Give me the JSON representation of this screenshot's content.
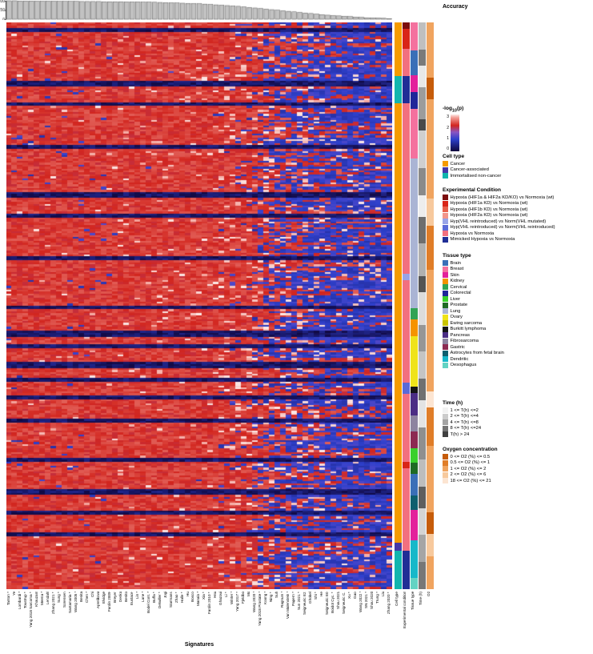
{
  "axis": {
    "x_title": "Signatures"
  },
  "strips": {
    "labels": [
      "Cell type",
      "Experimental condition",
      "Tissue type",
      "Time (h)",
      "O2"
    ]
  },
  "legends": {
    "accuracy_title": "Accuracy",
    "pvalue": {
      "title_prefix": "-log",
      "title_sub": "10",
      "title_suffix": "(p)",
      "ticks": [
        "3",
        "2",
        "1",
        "0"
      ]
    },
    "cell_type": {
      "title": "Cell type",
      "items": [
        {
          "label": "Cancer",
          "color": "#f59b00"
        },
        {
          "label": "Cancer-associated",
          "color": "#4638a8"
        },
        {
          "label": "Immortalised non-cancer",
          "color": "#12b5ae"
        }
      ]
    },
    "experimental": {
      "title": "Experimental Condition",
      "items": [
        {
          "label": "Hypoxia (HIF1a & HIF2a KD/KO) vs Normoxia (wt)",
          "color": "#7c0d0d"
        },
        {
          "label": "Hypoxia (HIF1a KD) vs Normoxia (wt)",
          "color": "#d92518"
        },
        {
          "label": "Hypoxia (HIF1b KD) vs Normoxia (wt)",
          "color": "#e8604c"
        },
        {
          "label": "Hypoxia (HIF2a KD) vs Normoxia (wt)",
          "color": "#f2958a"
        },
        {
          "label": "Hyp(VHL reintroduced) vs Norm(VHL mutated)",
          "color": "#98a4e8"
        },
        {
          "label": "Hyp(VHL reintroduced) vs Norm(VHL reintroduced)",
          "color": "#5a6ad8"
        },
        {
          "label": "Hypoxia vs Normoxia",
          "color": "#f2707f"
        },
        {
          "label": "Mimicked Hypoxia vs Normoxia",
          "color": "#202e96"
        }
      ]
    },
    "tissue": {
      "title": "Tissue type",
      "items": [
        {
          "label": "Brain",
          "color": "#3a6fb7"
        },
        {
          "label": "Breast",
          "color": "#f4719e"
        },
        {
          "label": "Skin",
          "color": "#e3219b"
        },
        {
          "label": "Kidney",
          "color": "#f59300"
        },
        {
          "label": "Cervical",
          "color": "#31a354"
        },
        {
          "label": "Colorectal",
          "color": "#1f2699"
        },
        {
          "label": "Liver",
          "color": "#39d02c"
        },
        {
          "label": "Prostate",
          "color": "#1e6b24"
        },
        {
          "label": "Lung",
          "color": "#aab4d4"
        },
        {
          "label": "Ovary",
          "color": "#efe31a"
        },
        {
          "label": "Ewing sarcoma",
          "color": "#c9c400"
        },
        {
          "label": "Burkitt lymphoma",
          "color": "#141414"
        },
        {
          "label": "Pancreas",
          "color": "#4b2d84"
        },
        {
          "label": "Fibrosarcoma",
          "color": "#8d84a0"
        },
        {
          "label": "Gastric",
          "color": "#8c2a52"
        },
        {
          "label": "Astrocytes from fetal brain",
          "color": "#0e5f6e"
        },
        {
          "label": "Dendritic",
          "color": "#17b8c9"
        },
        {
          "label": "Oesophagus",
          "color": "#63d3c3"
        }
      ]
    },
    "time": {
      "title": "Time (h)",
      "items": [
        {
          "label": "1 <= T(h) <=2",
          "color": "#f2f2f2"
        },
        {
          "label": "2 <= T(h) <=4",
          "color": "#cccccc"
        },
        {
          "label": "4 <= T(h) <=8",
          "color": "#a3a3a3"
        },
        {
          "label": "8 <= T(h) <=24",
          "color": "#737373"
        },
        {
          "label": "T(h) > 24",
          "color": "#404040"
        }
      ]
    },
    "oxygen": {
      "title": "Oxygen concentration",
      "items": [
        {
          "label": "0 <= O2 (%) <= 0.5",
          "color": "#c65c0a"
        },
        {
          "label": "0.5 <= O2 (%) <= 1",
          "color": "#e07d28"
        },
        {
          "label": "1 <= O2 (%) <= 2",
          "color": "#f0a45f"
        },
        {
          "label": "2 <= O2 (%) <= 6",
          "color": "#f7c99d"
        },
        {
          "label": "18 <= O2 (%) <= 21",
          "color": "#fce5d2"
        }
      ]
    }
  },
  "signatures": [
    "Tanton *",
    "Ye",
    "Lombardi *",
    "Toustrup *",
    "Yang 2018 Sarcoma *",
    "Khouzam",
    "Meena *",
    "Lendahl",
    "Zhang 2021 *",
    "Sung *",
    "Sorensen",
    "Santamaria *",
    "Wang 2005 *",
    "Benita",
    "Chen *",
    "Chi",
    "Aprelikova",
    "Elvidge",
    "Fardin 2009",
    "Breyer",
    "Denko",
    "Benito",
    "Eustace",
    "Lin *",
    "Lane *",
    "Bodel Cont. *",
    "Buffa *",
    "Detwiller *",
    "Jogi",
    "Starmans",
    "Zhao *",
    "Halle *",
    "Hu",
    "Bosco",
    "Manalo *",
    "Xia *",
    "Fardin 2010 *",
    "Hsu",
    "Ghazoui",
    "Li *",
    "Winter *",
    "Yang 2017 *",
    "Fjeldbo",
    "Mo",
    "Wang 2020 *",
    "Yang 2018 Prostate *",
    "Koong *",
    "Ning *",
    "Suh",
    "Ragnum *",
    "Van Malenstein *",
    "Papern *",
    "Sun 2021 *",
    "Seigneuric E2",
    "Ghobel",
    "Shi *",
    "He",
    "Seigneuric E0",
    "Boidot Cyc. *",
    "Shou 2021",
    "Seigneuric C.",
    "Xu *",
    "Gao",
    "Wang 2022 *",
    "SN 2021 *",
    "Shou 2020",
    "Trung *",
    "Liu",
    "Zhang 2020 *"
  ],
  "chart_data": {
    "accuracy_bars": {
      "type": "bar",
      "title": "Accuracy",
      "ylim": [
        0,
        100
      ],
      "yticks": [
        100,
        50,
        0
      ],
      "bar_fill": "#c2c2c2",
      "bar_stroke": "#333333",
      "values": [
        100,
        100,
        99,
        99,
        99,
        98,
        98,
        98,
        98,
        97,
        97,
        97,
        97,
        96,
        96,
        96,
        96,
        95,
        95,
        95,
        95,
        94,
        94,
        94,
        93,
        93,
        92,
        91,
        90,
        89,
        88,
        87,
        86,
        85,
        84,
        82,
        80,
        78,
        76,
        74,
        72,
        70,
        67,
        64,
        61,
        58,
        55,
        52,
        49,
        46,
        43,
        40,
        37,
        34,
        31,
        28,
        25,
        22,
        20,
        18,
        16,
        14,
        12,
        10,
        8,
        7,
        6,
        5,
        3
      ]
    },
    "heatmap": {
      "type": "heatmap",
      "value_label": "-log10(p)",
      "value_range": [
        0,
        3
      ],
      "rows": 290,
      "cols": 69,
      "seed": 42,
      "colormap_stops": [
        [
          0,
          "#0f063c"
        ],
        [
          0.33,
          "#2e40cc"
        ],
        [
          0.52,
          "#8a55c2"
        ],
        [
          0.7,
          "#d2251e"
        ],
        [
          0.92,
          "#f4a29a"
        ],
        [
          1,
          "#fcebe9"
        ]
      ],
      "col_red": [
        0.97,
        0.97,
        0.97,
        0.97,
        0.97,
        0.97,
        0.97,
        0.97,
        0.97,
        0.97,
        0.97,
        0.97,
        0.97,
        0.97,
        0.97,
        0.97,
        0.97,
        0.97,
        0.97,
        0.97,
        0.97,
        0.97,
        0.97,
        0.97,
        0.97,
        0.97,
        0.97,
        0.97,
        0.97,
        0.97,
        0.97,
        0.97,
        0.97,
        0.97,
        0.97,
        0.97,
        0.97,
        0.9,
        0.88,
        0.88,
        0.86,
        0.85,
        0.84,
        0.82,
        0.72,
        0.66,
        0.6,
        0.56,
        0.5,
        0.46,
        0.42,
        0.4,
        0.38,
        0.36,
        0.34,
        0.32,
        0.3,
        0.26,
        0.24,
        0.22,
        0.2,
        0.18,
        0.16,
        0.15,
        0.14,
        0.13,
        0.12,
        0.11,
        0.1
      ],
      "col_white": [
        0.01,
        0.01,
        0.01,
        0.01,
        0.01,
        0.01,
        0.01,
        0.01,
        0.01,
        0.01,
        0.01,
        0.01,
        0.01,
        0.01,
        0.01,
        0.01,
        0.01,
        0.01,
        0.04,
        0.04,
        0.04,
        0.04,
        0.04,
        0.04,
        0.04,
        0.04,
        0.04,
        0.04,
        0.04,
        0.04,
        0.04,
        0.04,
        0.04,
        0.04,
        0.04,
        0.04,
        0.04,
        0.1,
        0.1,
        0.1,
        0.1,
        0.1,
        0.1,
        0.1,
        0.1,
        0.1,
        0.1,
        0.1,
        0.1,
        0.1,
        0.12,
        0.12,
        0.12,
        0.12,
        0.12,
        0.12,
        0.12,
        0.06,
        0.06,
        0.06,
        0.06,
        0.06,
        0.06,
        0.06,
        0.06,
        0.06,
        0.06,
        0.06,
        0.06
      ],
      "row_bands": [
        {
          "r": 0.012,
          "h": 2
        },
        {
          "r": 0.105,
          "h": 3
        },
        {
          "r": 0.142,
          "h": 2
        },
        {
          "r": 0.218,
          "h": 2
        },
        {
          "r": 0.3,
          "h": 3
        },
        {
          "r": 0.338,
          "h": 2
        },
        {
          "r": 0.415,
          "h": 2
        },
        {
          "r": 0.5,
          "h": 2
        },
        {
          "r": 0.545,
          "h": 3
        },
        {
          "r": 0.568,
          "h": 2
        },
        {
          "r": 0.6,
          "h": 3
        },
        {
          "r": 0.628,
          "h": 2
        },
        {
          "r": 0.66,
          "h": 2
        },
        {
          "r": 0.7,
          "h": 2
        },
        {
          "r": 0.77,
          "h": 2
        },
        {
          "r": 0.825,
          "h": 3
        },
        {
          "r": 0.862,
          "h": 2
        },
        {
          "r": 0.9,
          "h": 2
        }
      ]
    },
    "annotation_strips": {
      "cell_type": [
        {
          "c": "#f59b00",
          "f": 0.095
        },
        {
          "c": "#12b5ae",
          "f": 0.048
        },
        {
          "c": "#f59b00",
          "f": 0.775
        },
        {
          "c": "#4638a8",
          "f": 0.014
        },
        {
          "c": "#12b5ae",
          "f": 0.068
        }
      ],
      "experimental_condition": [
        {
          "c": "#7c0d0d",
          "f": 0.012
        },
        {
          "c": "#d92518",
          "f": 0.035
        },
        {
          "c": "#f2707f",
          "f": 0.048
        },
        {
          "c": "#202e96",
          "f": 0.048
        },
        {
          "c": "#f2707f",
          "f": 0.3
        },
        {
          "c": "#98a4e8",
          "f": 0.012
        },
        {
          "c": "#f2707f",
          "f": 0.18
        },
        {
          "c": "#5a6ad8",
          "f": 0.02
        },
        {
          "c": "#f2707f",
          "f": 0.12
        },
        {
          "c": "#d92518",
          "f": 0.012
        },
        {
          "c": "#f2707f",
          "f": 0.145
        },
        {
          "c": "#202e96",
          "f": 0.068
        }
      ],
      "tissue_type": [
        {
          "c": "#f4719e",
          "f": 0.05
        },
        {
          "c": "#3a6fb7",
          "f": 0.045
        },
        {
          "c": "#e3219b",
          "f": 0.03
        },
        {
          "c": "#1f2699",
          "f": 0.03
        },
        {
          "c": "#f4719e",
          "f": 0.09
        },
        {
          "c": "#aab4d4",
          "f": 0.27
        },
        {
          "c": "#31a354",
          "f": 0.02
        },
        {
          "c": "#f59300",
          "f": 0.03
        },
        {
          "c": "#efe31a",
          "f": 0.09
        },
        {
          "c": "#141414",
          "f": 0.012
        },
        {
          "c": "#4b2d84",
          "f": 0.04
        },
        {
          "c": "#8d84a0",
          "f": 0.03
        },
        {
          "c": "#8c2a52",
          "f": 0.03
        },
        {
          "c": "#39d02c",
          "f": 0.025
        },
        {
          "c": "#1e6b24",
          "f": 0.02
        },
        {
          "c": "#3a6fb7",
          "f": 0.04
        },
        {
          "c": "#0e5f6e",
          "f": 0.025
        },
        {
          "c": "#e3219b",
          "f": 0.055
        },
        {
          "c": "#17b8c9",
          "f": 0.068
        },
        {
          "c": "#63d3c3",
          "f": 0.02
        }
      ],
      "time": [
        {
          "c": "#bfbfbf",
          "f": 0.05
        },
        {
          "c": "#7a7a7a",
          "f": 0.03
        },
        {
          "c": "#e8e8e8",
          "f": 0.04
        },
        {
          "c": "#9c9c9c",
          "f": 0.06
        },
        {
          "c": "#4a4a4a",
          "f": 0.02
        },
        {
          "c": "#cfcfcf",
          "f": 0.07
        },
        {
          "c": "#8a8a8a",
          "f": 0.05
        },
        {
          "c": "#ededed",
          "f": 0.04
        },
        {
          "c": "#6e6e6e",
          "f": 0.05
        },
        {
          "c": "#b0b0b0",
          "f": 0.06
        },
        {
          "c": "#545454",
          "f": 0.03
        },
        {
          "c": "#dcdcdc",
          "f": 0.06
        },
        {
          "c": "#969696",
          "f": 0.05
        },
        {
          "c": "#c4c4c4",
          "f": 0.05
        },
        {
          "c": "#707070",
          "f": 0.04
        },
        {
          "c": "#e3e3e3",
          "f": 0.05
        },
        {
          "c": "#8f8f8f",
          "f": 0.06
        },
        {
          "c": "#bdbdbd",
          "f": 0.05
        },
        {
          "c": "#5e5e5e",
          "f": 0.04
        },
        {
          "c": "#d4d4d4",
          "f": 0.05
        },
        {
          "c": "#a5a5a5",
          "f": 0.05
        },
        {
          "c": "#777777",
          "f": 0.05
        }
      ],
      "o2": [
        {
          "c": "#f0a45f",
          "f": 0.1
        },
        {
          "c": "#c65c0a",
          "f": 0.04
        },
        {
          "c": "#f0a45f",
          "f": 0.18
        },
        {
          "c": "#f7c99d",
          "f": 0.05
        },
        {
          "c": "#e07d28",
          "f": 0.08
        },
        {
          "c": "#f0a45f",
          "f": 0.22
        },
        {
          "c": "#fce5d2",
          "f": 0.03
        },
        {
          "c": "#e07d28",
          "f": 0.07
        },
        {
          "c": "#f0a45f",
          "f": 0.12
        },
        {
          "c": "#c65c0a",
          "f": 0.04
        },
        {
          "c": "#f7c99d",
          "f": 0.04
        },
        {
          "c": "#f0a45f",
          "f": 0.06
        }
      ]
    }
  }
}
